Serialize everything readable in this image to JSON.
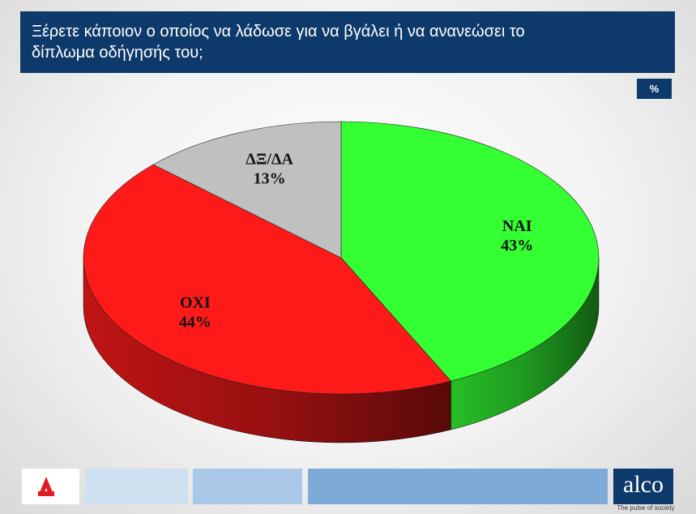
{
  "chart_data": {
    "type": "pie3d",
    "title": "Ξέρετε κάποιον ο οποίος να λάδωσε για να βγάλει ή να ανανεώσει το δίπλωμα οδήγησής του;",
    "unit_label": "%",
    "categories": [
      "NAI",
      "OXI",
      "ΔΞ/ΔΑ"
    ],
    "values": [
      43,
      44,
      13
    ],
    "value_labels": [
      "43%",
      "44%",
      "13%"
    ],
    "colors": [
      "#33ff33",
      "#ff1a1a",
      "#c0c0c0"
    ]
  },
  "footer": {
    "brand": "alco",
    "tagline": "The pulse of society"
  }
}
